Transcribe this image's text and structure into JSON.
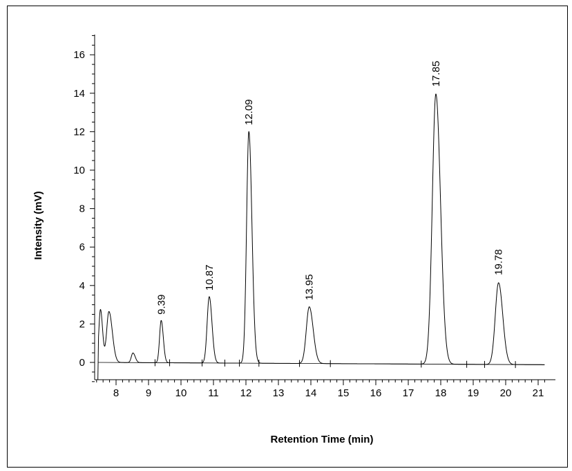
{
  "chart_data": {
    "type": "line",
    "title": "",
    "xlabel": "Retention Time (min)",
    "ylabel": "Intensity (mV)",
    "xlim": [
      7.4,
      21.25
    ],
    "ylim": [
      -1.0,
      17.0
    ],
    "x_ticks": [
      8,
      9,
      10,
      11,
      12,
      13,
      14,
      15,
      16,
      17,
      18,
      19,
      20,
      21
    ],
    "y_ticks": [
      0,
      2,
      4,
      6,
      8,
      10,
      12,
      14,
      16
    ],
    "grid": false,
    "baseline": {
      "start": [
        7.45,
        0.0
      ],
      "end": [
        21.2,
        -0.12
      ]
    },
    "series": [
      {
        "peaks": [
          {
            "rt": 7.52,
            "height": 2.75,
            "sigma": 0.05,
            "tail": 1.3
          },
          {
            "rt": 7.78,
            "height": 2.65,
            "sigma": 0.07,
            "tail": 1.5
          },
          {
            "rt": 8.52,
            "height": 0.5,
            "sigma": 0.05,
            "tail": 1.4
          },
          {
            "rt": 9.39,
            "height": 2.2,
            "sigma": 0.05,
            "tail": 1.3
          },
          {
            "rt": 10.87,
            "height": 3.45,
            "sigma": 0.065,
            "tail": 1.3
          },
          {
            "rt": 12.09,
            "height": 12.05,
            "sigma": 0.07,
            "tail": 1.35
          },
          {
            "rt": 13.95,
            "height": 2.95,
            "sigma": 0.09,
            "tail": 1.35
          },
          {
            "rt": 17.85,
            "height": 14.05,
            "sigma": 0.11,
            "tail": 1.3
          },
          {
            "rt": 19.78,
            "height": 4.25,
            "sigma": 0.1,
            "tail": 1.3
          }
        ]
      }
    ],
    "annotations": [
      {
        "text": "9.39",
        "x": 9.39,
        "y": 2.2
      },
      {
        "text": "10.87",
        "x": 10.87,
        "y": 3.45
      },
      {
        "text": "12.09",
        "x": 12.09,
        "y": 12.05
      },
      {
        "text": "13.95",
        "x": 13.95,
        "y": 2.95
      },
      {
        "text": "17.85",
        "x": 17.85,
        "y": 14.05
      },
      {
        "text": "19.78",
        "x": 19.78,
        "y": 4.25
      }
    ],
    "integration_marks": [
      9.2,
      9.65,
      10.65,
      11.35,
      11.8,
      12.4,
      13.65,
      14.6,
      17.4,
      18.8,
      19.35,
      20.3
    ]
  }
}
